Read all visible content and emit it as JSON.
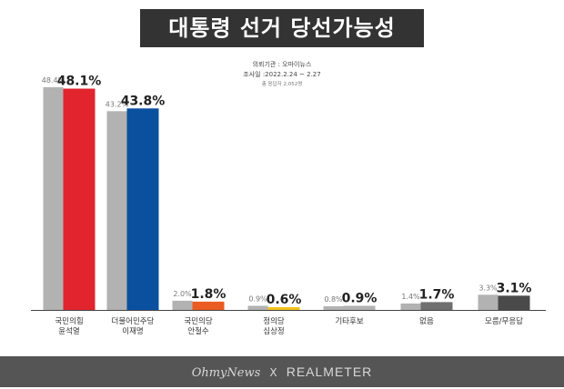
{
  "title": "대통령 선거 당선가능성",
  "source": {
    "line1": "의뢰기관 : 오마이뉴스",
    "line2": "조사일 :2022.2.24 ~ 2.27",
    "line3": "총 응답자 2,052명"
  },
  "footer": {
    "brand1": "OhmyNews",
    "separator": "X",
    "brand2": "REALMETER"
  },
  "colors": {
    "previous_bar": "#b3b2b2",
    "title_bg": "#333333",
    "footer_bg": "#555555"
  },
  "chart_data": {
    "type": "bar",
    "ylim": [
      0,
      50
    ],
    "categories": [
      [
        "국민의힘",
        "윤석열"
      ],
      [
        "더불어민주당",
        "이재명"
      ],
      [
        "국민의당",
        "안철수"
      ],
      [
        "정의당",
        "심상정"
      ],
      [
        "기타후보"
      ],
      [
        "없음"
      ],
      [
        "모름/무응답"
      ]
    ],
    "series": [
      {
        "values": [
          48.4,
          43.2,
          2.0,
          0.9,
          0.8,
          1.4,
          3.3
        ],
        "labels": [
          "48.4%",
          "43.2%",
          "2.0%",
          "0.9%",
          "0.8%",
          "1.4%",
          "3.3%"
        ]
      },
      {
        "values": [
          48.1,
          43.8,
          1.8,
          0.6,
          0.9,
          1.7,
          3.1
        ],
        "labels": [
          "48.1%",
          "43.8%",
          "1.8%",
          "0.6%",
          "0.9%",
          "1.7%",
          "3.1%"
        ],
        "colors": [
          "#e1242d",
          "#0a509f",
          "#ea5c22",
          "#f2c21a",
          "#b3b2b2",
          "#6f6f6f",
          "#4a4a4a"
        ]
      }
    ]
  }
}
